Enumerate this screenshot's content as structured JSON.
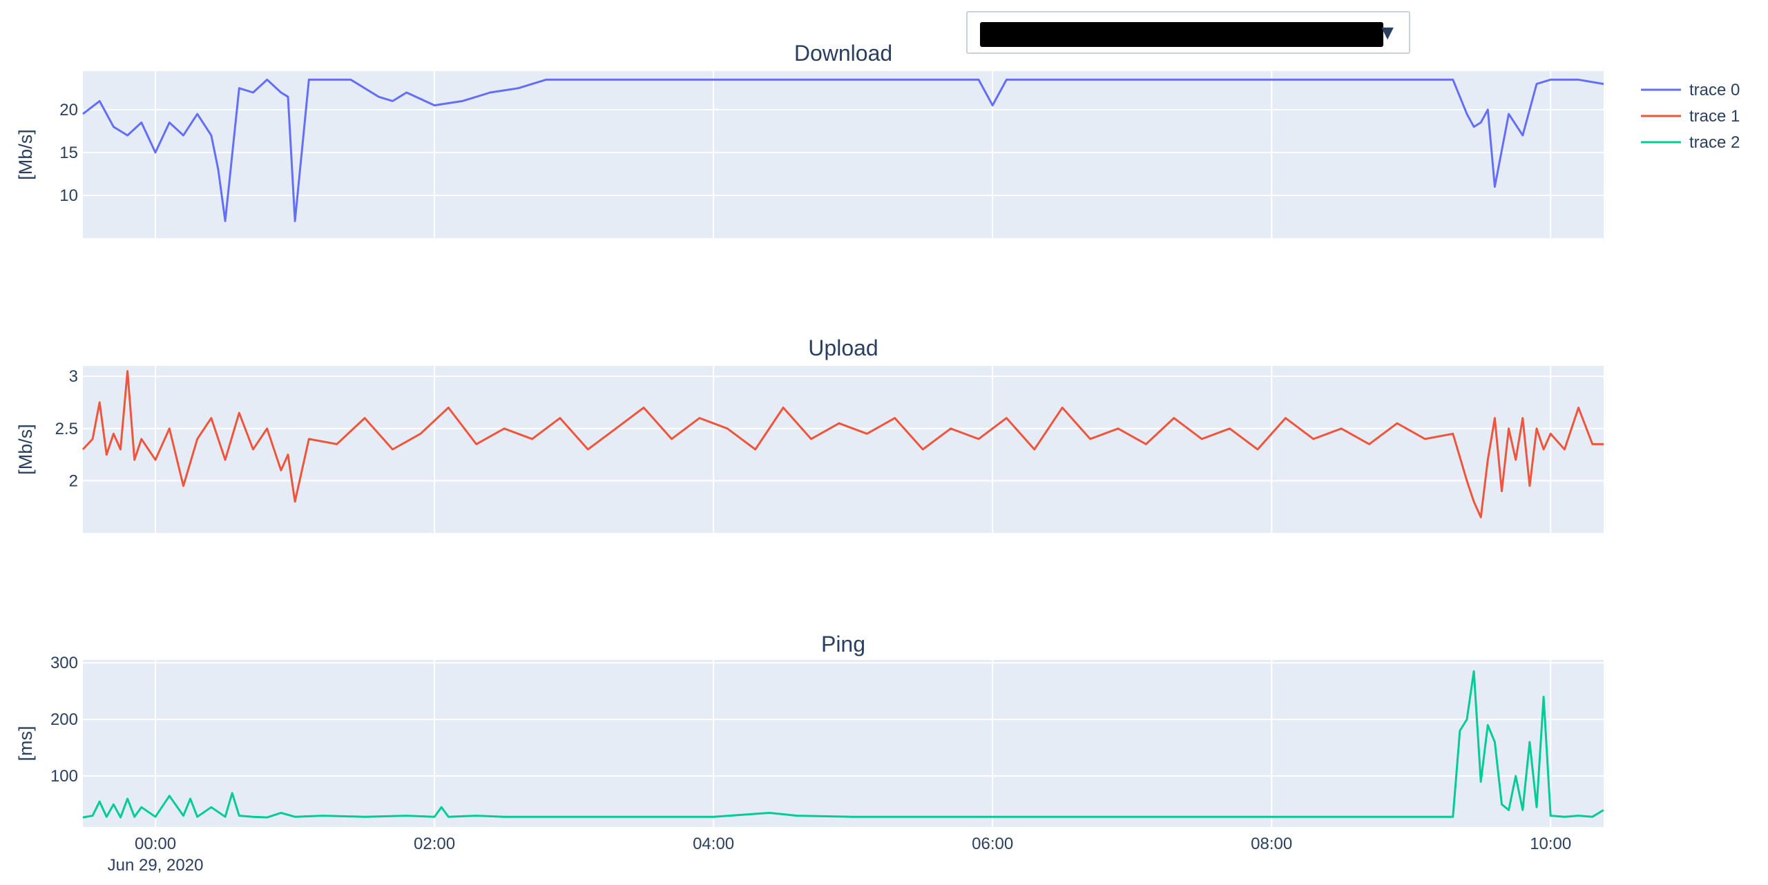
{
  "dropdown": {
    "selected_value": "",
    "arrow": "▼"
  },
  "legend": [
    {
      "name": "trace 0",
      "color": "#636efa"
    },
    {
      "name": "trace 1",
      "color": "#ef553b"
    },
    {
      "name": "trace 2",
      "color": "#00cc96"
    }
  ],
  "colors": {
    "plot_bg": "#e5ecf6",
    "grid": "#ffffff",
    "text": "#2a3f5f"
  },
  "x_axis": {
    "ticks": [
      "00:00",
      "02:00",
      "04:00",
      "06:00",
      "08:00",
      "10:00"
    ],
    "date_label": "Jun 29, 2020",
    "range_hours": [
      -0.52,
      10.38
    ]
  },
  "chart_data": [
    {
      "type": "line",
      "title": "Download",
      "ylabel": "[Mb/s]",
      "ylim": [
        5,
        24.5
      ],
      "yticks": [
        10,
        15,
        20
      ],
      "series": [
        {
          "name": "trace 0",
          "x_hours": [
            -0.52,
            -0.4,
            -0.3,
            -0.2,
            -0.1,
            0.0,
            0.1,
            0.2,
            0.3,
            0.4,
            0.45,
            0.5,
            0.6,
            0.7,
            0.8,
            0.9,
            0.95,
            1.0,
            1.1,
            1.2,
            1.4,
            1.6,
            1.7,
            1.8,
            2.0,
            2.2,
            2.4,
            2.6,
            2.8,
            3.0,
            3.3,
            3.6,
            4.0,
            4.5,
            5.0,
            5.5,
            5.9,
            6.0,
            6.1,
            6.3,
            6.6,
            7.0,
            7.5,
            8.0,
            8.5,
            9.0,
            9.3,
            9.4,
            9.45,
            9.5,
            9.55,
            9.6,
            9.7,
            9.8,
            9.9,
            10.0,
            10.1,
            10.2,
            10.38
          ],
          "values": [
            19.5,
            21,
            18,
            17,
            18.5,
            15,
            18.5,
            17,
            19.5,
            17,
            13,
            7,
            22.5,
            22,
            23.5,
            22,
            21.5,
            7,
            23.5,
            23.5,
            23.5,
            21.5,
            21,
            22,
            20.5,
            21,
            22,
            22.5,
            23.5,
            23.5,
            23.5,
            23.5,
            23.5,
            23.5,
            23.5,
            23.5,
            23.5,
            20.5,
            23.5,
            23.5,
            23.5,
            23.5,
            23.5,
            23.5,
            23.5,
            23.5,
            23.5,
            19.5,
            18,
            18.5,
            20,
            11,
            19.5,
            17,
            23,
            23.5,
            23.5,
            23.5,
            23
          ]
        }
      ]
    },
    {
      "type": "line",
      "title": "Upload",
      "ylabel": "[Mb/s]",
      "ylim": [
        1.5,
        3.1
      ],
      "yticks": [
        2,
        2.5,
        3
      ],
      "series": [
        {
          "name": "trace 1",
          "x_hours": [
            -0.52,
            -0.45,
            -0.4,
            -0.35,
            -0.3,
            -0.25,
            -0.2,
            -0.15,
            -0.1,
            -0.05,
            0.0,
            0.1,
            0.2,
            0.3,
            0.4,
            0.5,
            0.6,
            0.7,
            0.8,
            0.9,
            0.95,
            1.0,
            1.1,
            1.3,
            1.5,
            1.7,
            1.9,
            2.1,
            2.3,
            2.5,
            2.7,
            2.9,
            3.1,
            3.3,
            3.5,
            3.7,
            3.9,
            4.1,
            4.3,
            4.5,
            4.7,
            4.9,
            5.1,
            5.3,
            5.5,
            5.7,
            5.9,
            6.1,
            6.3,
            6.5,
            6.7,
            6.9,
            7.1,
            7.3,
            7.5,
            7.7,
            7.9,
            8.1,
            8.3,
            8.5,
            8.7,
            8.9,
            9.1,
            9.3,
            9.4,
            9.45,
            9.5,
            9.55,
            9.6,
            9.65,
            9.7,
            9.75,
            9.8,
            9.85,
            9.9,
            9.95,
            10.0,
            10.1,
            10.2,
            10.3,
            10.38
          ],
          "values": [
            2.3,
            2.4,
            2.75,
            2.25,
            2.45,
            2.3,
            3.05,
            2.2,
            2.4,
            2.3,
            2.2,
            2.5,
            1.95,
            2.4,
            2.6,
            2.2,
            2.65,
            2.3,
            2.5,
            2.1,
            2.25,
            1.8,
            2.4,
            2.35,
            2.6,
            2.3,
            2.45,
            2.7,
            2.35,
            2.5,
            2.4,
            2.6,
            2.3,
            2.5,
            2.7,
            2.4,
            2.6,
            2.5,
            2.3,
            2.7,
            2.4,
            2.55,
            2.45,
            2.6,
            2.3,
            2.5,
            2.4,
            2.6,
            2.3,
            2.7,
            2.4,
            2.5,
            2.35,
            2.6,
            2.4,
            2.5,
            2.3,
            2.6,
            2.4,
            2.5,
            2.35,
            2.55,
            2.4,
            2.45,
            2.0,
            1.8,
            1.65,
            2.2,
            2.6,
            1.9,
            2.5,
            2.2,
            2.6,
            1.95,
            2.5,
            2.3,
            2.45,
            2.3,
            2.7,
            2.35,
            2.35
          ]
        }
      ]
    },
    {
      "type": "line",
      "title": "Ping",
      "ylabel": "[ms]",
      "ylim": [
        10,
        305
      ],
      "yticks": [
        100,
        200,
        300
      ],
      "series": [
        {
          "name": "trace 2",
          "x_hours": [
            -0.52,
            -0.45,
            -0.4,
            -0.35,
            -0.3,
            -0.25,
            -0.2,
            -0.15,
            -0.1,
            0.0,
            0.1,
            0.2,
            0.25,
            0.3,
            0.4,
            0.5,
            0.55,
            0.6,
            0.7,
            0.8,
            0.9,
            1.0,
            1.2,
            1.5,
            1.8,
            2.0,
            2.05,
            2.1,
            2.3,
            2.5,
            2.7,
            3.0,
            3.5,
            4.0,
            4.4,
            4.6,
            5.0,
            5.5,
            6.0,
            6.5,
            7.0,
            7.5,
            8.0,
            8.5,
            9.0,
            9.3,
            9.35,
            9.4,
            9.45,
            9.5,
            9.55,
            9.6,
            9.65,
            9.7,
            9.75,
            9.8,
            9.85,
            9.9,
            9.95,
            10.0,
            10.1,
            10.2,
            10.3,
            10.38
          ],
          "values": [
            27,
            30,
            55,
            28,
            50,
            27,
            60,
            28,
            45,
            28,
            65,
            30,
            60,
            28,
            45,
            28,
            70,
            30,
            28,
            27,
            35,
            28,
            30,
            28,
            30,
            28,
            45,
            28,
            30,
            28,
            28,
            28,
            28,
            28,
            35,
            30,
            28,
            28,
            28,
            28,
            28,
            28,
            28,
            28,
            28,
            28,
            180,
            200,
            285,
            90,
            190,
            160,
            50,
            40,
            100,
            40,
            160,
            45,
            240,
            30,
            28,
            30,
            28,
            40
          ]
        }
      ]
    }
  ]
}
